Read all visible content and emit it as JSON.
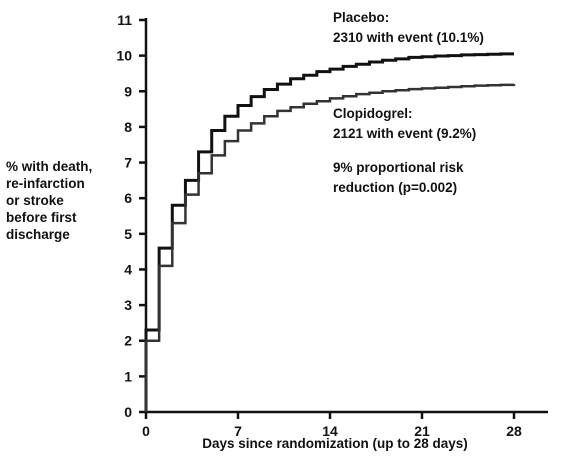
{
  "chart_data": {
    "type": "line",
    "step": true,
    "xlabel": "Days since randomization (up to 28 days)",
    "ylabel_lines": [
      "% with death,",
      "re-infarction",
      "or stroke",
      "before first",
      "discharge"
    ],
    "xlim": [
      0,
      28
    ],
    "ylim": [
      0,
      11
    ],
    "xticks": [
      0,
      7,
      14,
      21,
      28
    ],
    "yticks": [
      0,
      1,
      2,
      3,
      4,
      5,
      6,
      7,
      8,
      9,
      10,
      11
    ],
    "grid": false,
    "series": [
      {
        "name": "Placebo",
        "color": "#111111",
        "x": [
          0,
          1,
          2,
          3,
          4,
          5,
          6,
          7,
          8,
          9,
          10,
          11,
          12,
          13,
          14,
          15,
          16,
          17,
          18,
          19,
          20,
          21,
          22,
          23,
          24,
          25,
          26,
          27,
          28
        ],
        "y": [
          2.3,
          4.6,
          5.8,
          6.5,
          7.3,
          7.9,
          8.3,
          8.6,
          8.85,
          9.05,
          9.2,
          9.35,
          9.45,
          9.55,
          9.62,
          9.7,
          9.76,
          9.82,
          9.87,
          9.91,
          9.95,
          9.97,
          9.99,
          10.0,
          10.02,
          10.03,
          10.04,
          10.05,
          10.05
        ]
      },
      {
        "name": "Clopidogrel",
        "color": "#333333",
        "x": [
          0,
          1,
          2,
          3,
          4,
          5,
          6,
          7,
          8,
          9,
          10,
          11,
          12,
          13,
          14,
          15,
          16,
          17,
          18,
          19,
          20,
          21,
          22,
          23,
          24,
          25,
          26,
          27,
          28
        ],
        "y": [
          2.0,
          4.1,
          5.3,
          6.1,
          6.7,
          7.2,
          7.6,
          7.9,
          8.1,
          8.3,
          8.45,
          8.55,
          8.65,
          8.72,
          8.8,
          8.86,
          8.92,
          8.96,
          9.0,
          9.03,
          9.06,
          9.08,
          9.1,
          9.12,
          9.14,
          9.16,
          9.17,
          9.18,
          9.2
        ]
      }
    ],
    "annotations": [
      {
        "lines": [
          "Placebo:",
          "2310 with event (10.1%)"
        ]
      },
      {
        "lines": [
          "Clopidogrel:",
          "2121 with event (9.2%)"
        ]
      },
      {
        "lines": [
          "9% proportional risk",
          "reduction (p=0.002)"
        ]
      }
    ]
  }
}
